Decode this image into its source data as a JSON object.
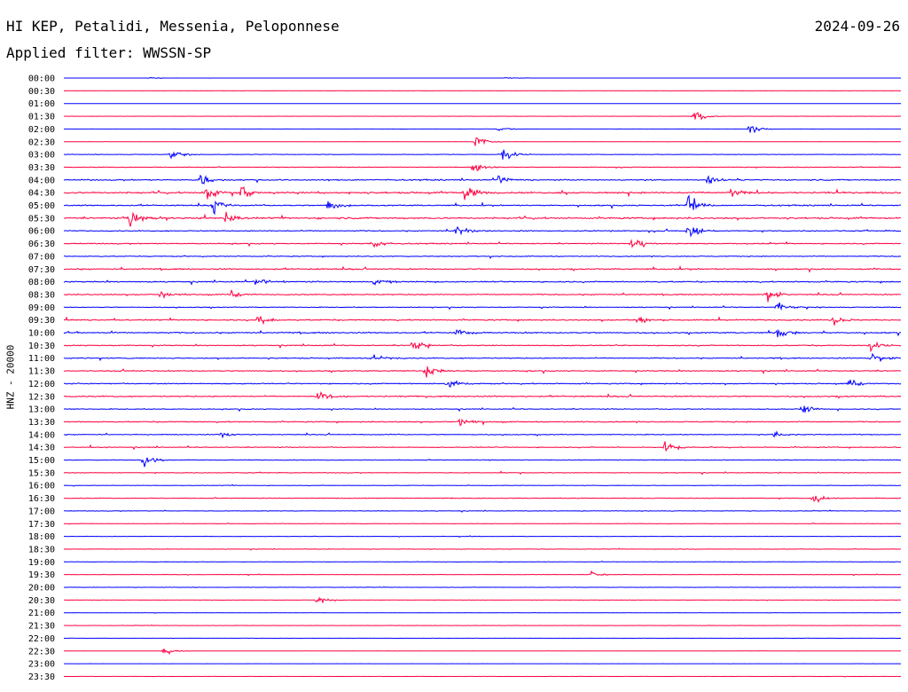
{
  "header": {
    "station": "HI KEP, Petalidi, Messenia, Peloponnese",
    "date": "2024-09-26",
    "filter": "Applied filter: WWSSN-SP"
  },
  "chart_data": {
    "type": "line",
    "ylabel": "HNZ - 20000",
    "colors": [
      "#0000ff",
      "#ff0040"
    ],
    "tick_labels": [
      "00:00",
      "00:30",
      "01:00",
      "01:30",
      "02:00",
      "02:30",
      "03:00",
      "03:30",
      "04:00",
      "04:30",
      "05:00",
      "05:30",
      "06:00",
      "06:30",
      "07:00",
      "07:30",
      "08:00",
      "08:30",
      "09:00",
      "09:30",
      "10:00",
      "10:30",
      "11:00",
      "11:30",
      "12:00",
      "12:30",
      "13:00",
      "13:30",
      "14:00",
      "14:30",
      "15:00",
      "15:30",
      "16:00",
      "16:30",
      "17:00",
      "17:30",
      "18:00",
      "18:30",
      "19:00",
      "19:30",
      "20:00",
      "20:30",
      "21:00",
      "21:30",
      "22:00",
      "22:30",
      "23:00",
      "23:30"
    ],
    "noise_level": [
      0.02,
      0.01,
      0.02,
      0.02,
      0.05,
      0.08,
      0.15,
      0.18,
      0.35,
      0.45,
      0.35,
      0.45,
      0.3,
      0.3,
      0.25,
      0.35,
      0.35,
      0.3,
      0.25,
      0.35,
      0.35,
      0.3,
      0.3,
      0.3,
      0.3,
      0.35,
      0.25,
      0.3,
      0.25,
      0.25,
      0.2,
      0.2,
      0.15,
      0.2,
      0.15,
      0.15,
      0.12,
      0.12,
      0.15,
      0.12,
      0.1,
      0.1,
      0.08,
      0.08,
      0.06,
      0.06,
      0.04,
      0.06
    ],
    "events": [
      {
        "row": 0,
        "minute": 3,
        "amp": 0.2
      },
      {
        "row": 0,
        "minute": 15.8,
        "amp": 0.2
      },
      {
        "row": 3,
        "minute": 22.5,
        "amp": 1.1
      },
      {
        "row": 4,
        "minute": 15.5,
        "amp": 0.5
      },
      {
        "row": 4,
        "minute": 24.5,
        "amp": 0.7
      },
      {
        "row": 5,
        "minute": 14.7,
        "amp": 1.3
      },
      {
        "row": 6,
        "minute": 3.8,
        "amp": 1.2
      },
      {
        "row": 6,
        "minute": 15.7,
        "amp": 1.3
      },
      {
        "row": 7,
        "minute": 14.6,
        "amp": 1.0
      },
      {
        "row": 8,
        "minute": 4.8,
        "amp": 1.3
      },
      {
        "row": 8,
        "minute": 15.5,
        "amp": 0.9
      },
      {
        "row": 8,
        "minute": 23.0,
        "amp": 1.0
      },
      {
        "row": 9,
        "minute": 5.0,
        "amp": 1.4
      },
      {
        "row": 9,
        "minute": 6.3,
        "amp": 1.3
      },
      {
        "row": 9,
        "minute": 14.3,
        "amp": 1.5
      },
      {
        "row": 9,
        "minute": 23.8,
        "amp": 1.0
      },
      {
        "row": 10,
        "minute": 5.3,
        "amp": 1.4
      },
      {
        "row": 10,
        "minute": 9.4,
        "amp": 1.2
      },
      {
        "row": 10,
        "minute": 22.3,
        "amp": 2.0
      },
      {
        "row": 11,
        "minute": 2.3,
        "amp": 2.2
      },
      {
        "row": 11,
        "minute": 5.7,
        "amp": 1.2
      },
      {
        "row": 12,
        "minute": 14.0,
        "amp": 1.0
      },
      {
        "row": 12,
        "minute": 22.3,
        "amp": 1.6
      },
      {
        "row": 13,
        "minute": 11.0,
        "amp": 1.0
      },
      {
        "row": 13,
        "minute": 20.3,
        "amp": 1.2
      },
      {
        "row": 16,
        "minute": 6.8,
        "amp": 1.0
      },
      {
        "row": 16,
        "minute": 11.1,
        "amp": 1.0
      },
      {
        "row": 17,
        "minute": 3.4,
        "amp": 1.0
      },
      {
        "row": 17,
        "minute": 5.9,
        "amp": 1.0
      },
      {
        "row": 17,
        "minute": 25.1,
        "amp": 1.4
      },
      {
        "row": 18,
        "minute": 25.5,
        "amp": 1.2
      },
      {
        "row": 19,
        "minute": 6.9,
        "amp": 1.0
      },
      {
        "row": 19,
        "minute": 20.5,
        "amp": 0.9
      },
      {
        "row": 19,
        "minute": 27.5,
        "amp": 1.0
      },
      {
        "row": 20,
        "minute": 14.0,
        "amp": 1.0
      },
      {
        "row": 20,
        "minute": 25.5,
        "amp": 1.1
      },
      {
        "row": 21,
        "minute": 12.4,
        "amp": 1.1
      },
      {
        "row": 21,
        "minute": 28.8,
        "amp": 1.2
      },
      {
        "row": 22,
        "minute": 11.0,
        "amp": 1.0
      },
      {
        "row": 22,
        "minute": 28.9,
        "amp": 1.3
      },
      {
        "row": 23,
        "minute": 12.9,
        "amp": 1.1
      },
      {
        "row": 24,
        "minute": 13.7,
        "amp": 1.0
      },
      {
        "row": 24,
        "minute": 28.1,
        "amp": 1.1
      },
      {
        "row": 25,
        "minute": 9.0,
        "amp": 1.1
      },
      {
        "row": 26,
        "minute": 26.4,
        "amp": 1.0
      },
      {
        "row": 27,
        "minute": 14.1,
        "amp": 1.1
      },
      {
        "row": 28,
        "minute": 5.6,
        "amp": 0.8
      },
      {
        "row": 28,
        "minute": 25.4,
        "amp": 0.9
      },
      {
        "row": 29,
        "minute": 21.5,
        "amp": 1.3
      },
      {
        "row": 30,
        "minute": 2.8,
        "amp": 1.2
      },
      {
        "row": 33,
        "minute": 26.8,
        "amp": 1.0
      },
      {
        "row": 39,
        "minute": 18.8,
        "amp": 0.7
      },
      {
        "row": 41,
        "minute": 9.0,
        "amp": 0.8
      },
      {
        "row": 45,
        "minute": 3.5,
        "amp": 0.7
      }
    ]
  }
}
